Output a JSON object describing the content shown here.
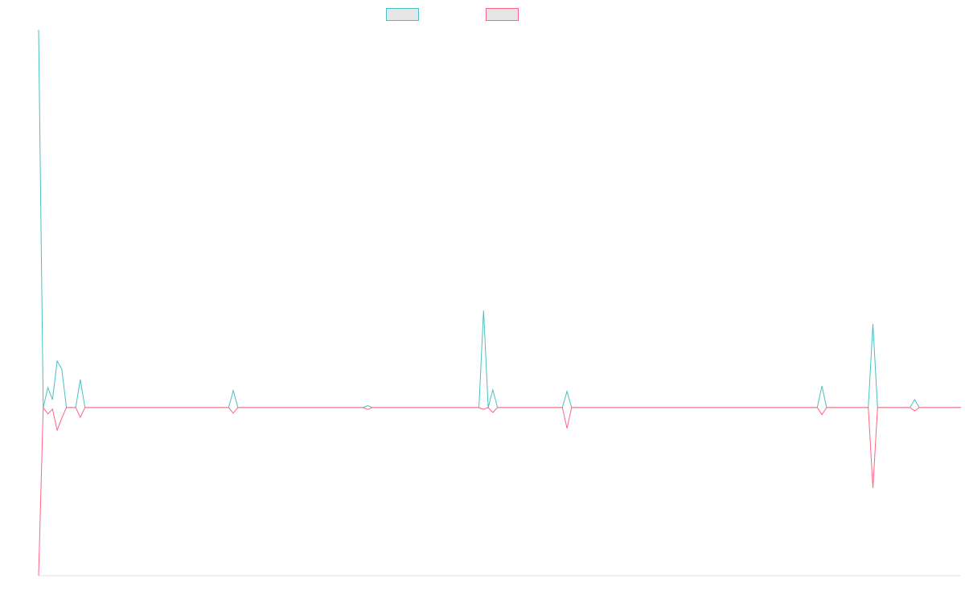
{
  "chart_data": {
    "type": "line",
    "ylim": [
      -44.5,
      100
    ],
    "series": [
      {
        "color": "#4bc0c0",
        "values": [
          100,
          0,
          5.3,
          2.1,
          12.3,
          10.2,
          0,
          0,
          0,
          7.4,
          0,
          0,
          0,
          0,
          0,
          0,
          0,
          0,
          0,
          0,
          0,
          0,
          0,
          0,
          0,
          0,
          0,
          0,
          0,
          0,
          0,
          0,
          0,
          0,
          0,
          0,
          0,
          0,
          0,
          0,
          0,
          0,
          4.5,
          0,
          0,
          0,
          0,
          0,
          0,
          0,
          0,
          0,
          0,
          0,
          0,
          0,
          0,
          0,
          0,
          0,
          0,
          0,
          0,
          0,
          0,
          0,
          0,
          0,
          0,
          0,
          0,
          0.5,
          0,
          0,
          0,
          0,
          0,
          0,
          0,
          0,
          0,
          0,
          0,
          0,
          0,
          0,
          0,
          0,
          0,
          0,
          0,
          0,
          0,
          0,
          0,
          0,
          25.7,
          0,
          4.7,
          0,
          0,
          0,
          0,
          0,
          0,
          0,
          0,
          0,
          0,
          0,
          0,
          0,
          0,
          0,
          4.3,
          0,
          0,
          0,
          0,
          0,
          0,
          0,
          0,
          0,
          0,
          0,
          0,
          0,
          0,
          0,
          0,
          0,
          0,
          0,
          0,
          0,
          0,
          0,
          0,
          0,
          0,
          0,
          0,
          0,
          0,
          0,
          0,
          0,
          0,
          0,
          0,
          0,
          0,
          0,
          0,
          0,
          0,
          0,
          0,
          0,
          0,
          0,
          0,
          0,
          0,
          0,
          0,
          0,
          0,
          5.7,
          0,
          0,
          0,
          0,
          0,
          0,
          0,
          0,
          0,
          0,
          22.1,
          0,
          0,
          0,
          0,
          0,
          0,
          0,
          0,
          2.1,
          0,
          0,
          0,
          0,
          0,
          0,
          0,
          0,
          0,
          0
        ]
      },
      {
        "color": "#ff6384",
        "values": [
          -44.5,
          0,
          -1.7,
          -0.4,
          -6,
          -2.8,
          0,
          0,
          0,
          -2.6,
          0,
          0,
          0,
          0,
          0,
          0,
          0,
          0,
          0,
          0,
          0,
          0,
          0,
          0,
          0,
          0,
          0,
          0,
          0,
          0,
          0,
          0,
          0,
          0,
          0,
          0,
          0,
          0,
          0,
          0,
          0,
          0,
          -1.5,
          0,
          0,
          0,
          0,
          0,
          0,
          0,
          0,
          0,
          0,
          0,
          0,
          0,
          0,
          0,
          0,
          0,
          0,
          0,
          0,
          0,
          0,
          0,
          0,
          0,
          0,
          0,
          0,
          -0.5,
          0,
          0,
          0,
          0,
          0,
          0,
          0,
          0,
          0,
          0,
          0,
          0,
          0,
          0,
          0,
          0,
          0,
          0,
          0,
          0,
          0,
          0,
          0,
          0,
          -0.5,
          0,
          -1.3,
          0,
          0,
          0,
          0,
          0,
          0,
          0,
          0,
          0,
          0,
          0,
          0,
          0,
          0,
          0,
          -5.5,
          0,
          0,
          0,
          0,
          0,
          0,
          0,
          0,
          0,
          0,
          0,
          0,
          0,
          0,
          0,
          0,
          0,
          0,
          0,
          0,
          0,
          0,
          0,
          0,
          0,
          0,
          0,
          0,
          0,
          0,
          0,
          0,
          0,
          0,
          0,
          0,
          0,
          0,
          0,
          0,
          0,
          0,
          0,
          0,
          0,
          0,
          0,
          0,
          0,
          0,
          0,
          0,
          0,
          0,
          -1.9,
          0,
          0,
          0,
          0,
          0,
          0,
          0,
          0,
          0,
          0,
          -21.3,
          0,
          0,
          0,
          0,
          0,
          0,
          0,
          0,
          -0.9,
          0,
          0,
          0,
          0,
          0,
          0,
          0,
          0,
          0,
          0
        ]
      }
    ]
  }
}
